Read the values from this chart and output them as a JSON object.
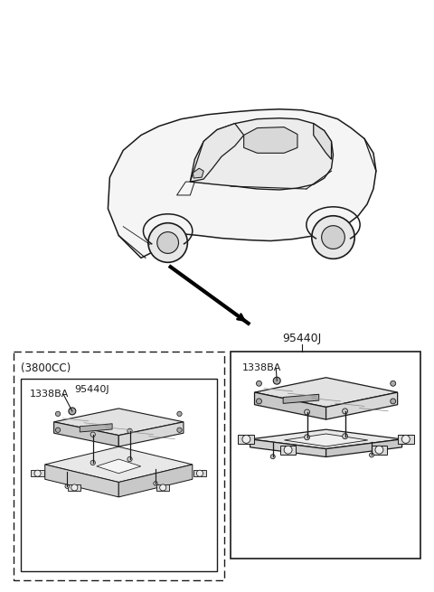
{
  "bg_color": "#ffffff",
  "line_color": "#1a1a1a",
  "gray_fill": "#d8d8d8",
  "dark_gray": "#888888",
  "label_95440J": "95440J",
  "label_1338BA": "1338BA",
  "label_3800CC": "(3800CC)"
}
